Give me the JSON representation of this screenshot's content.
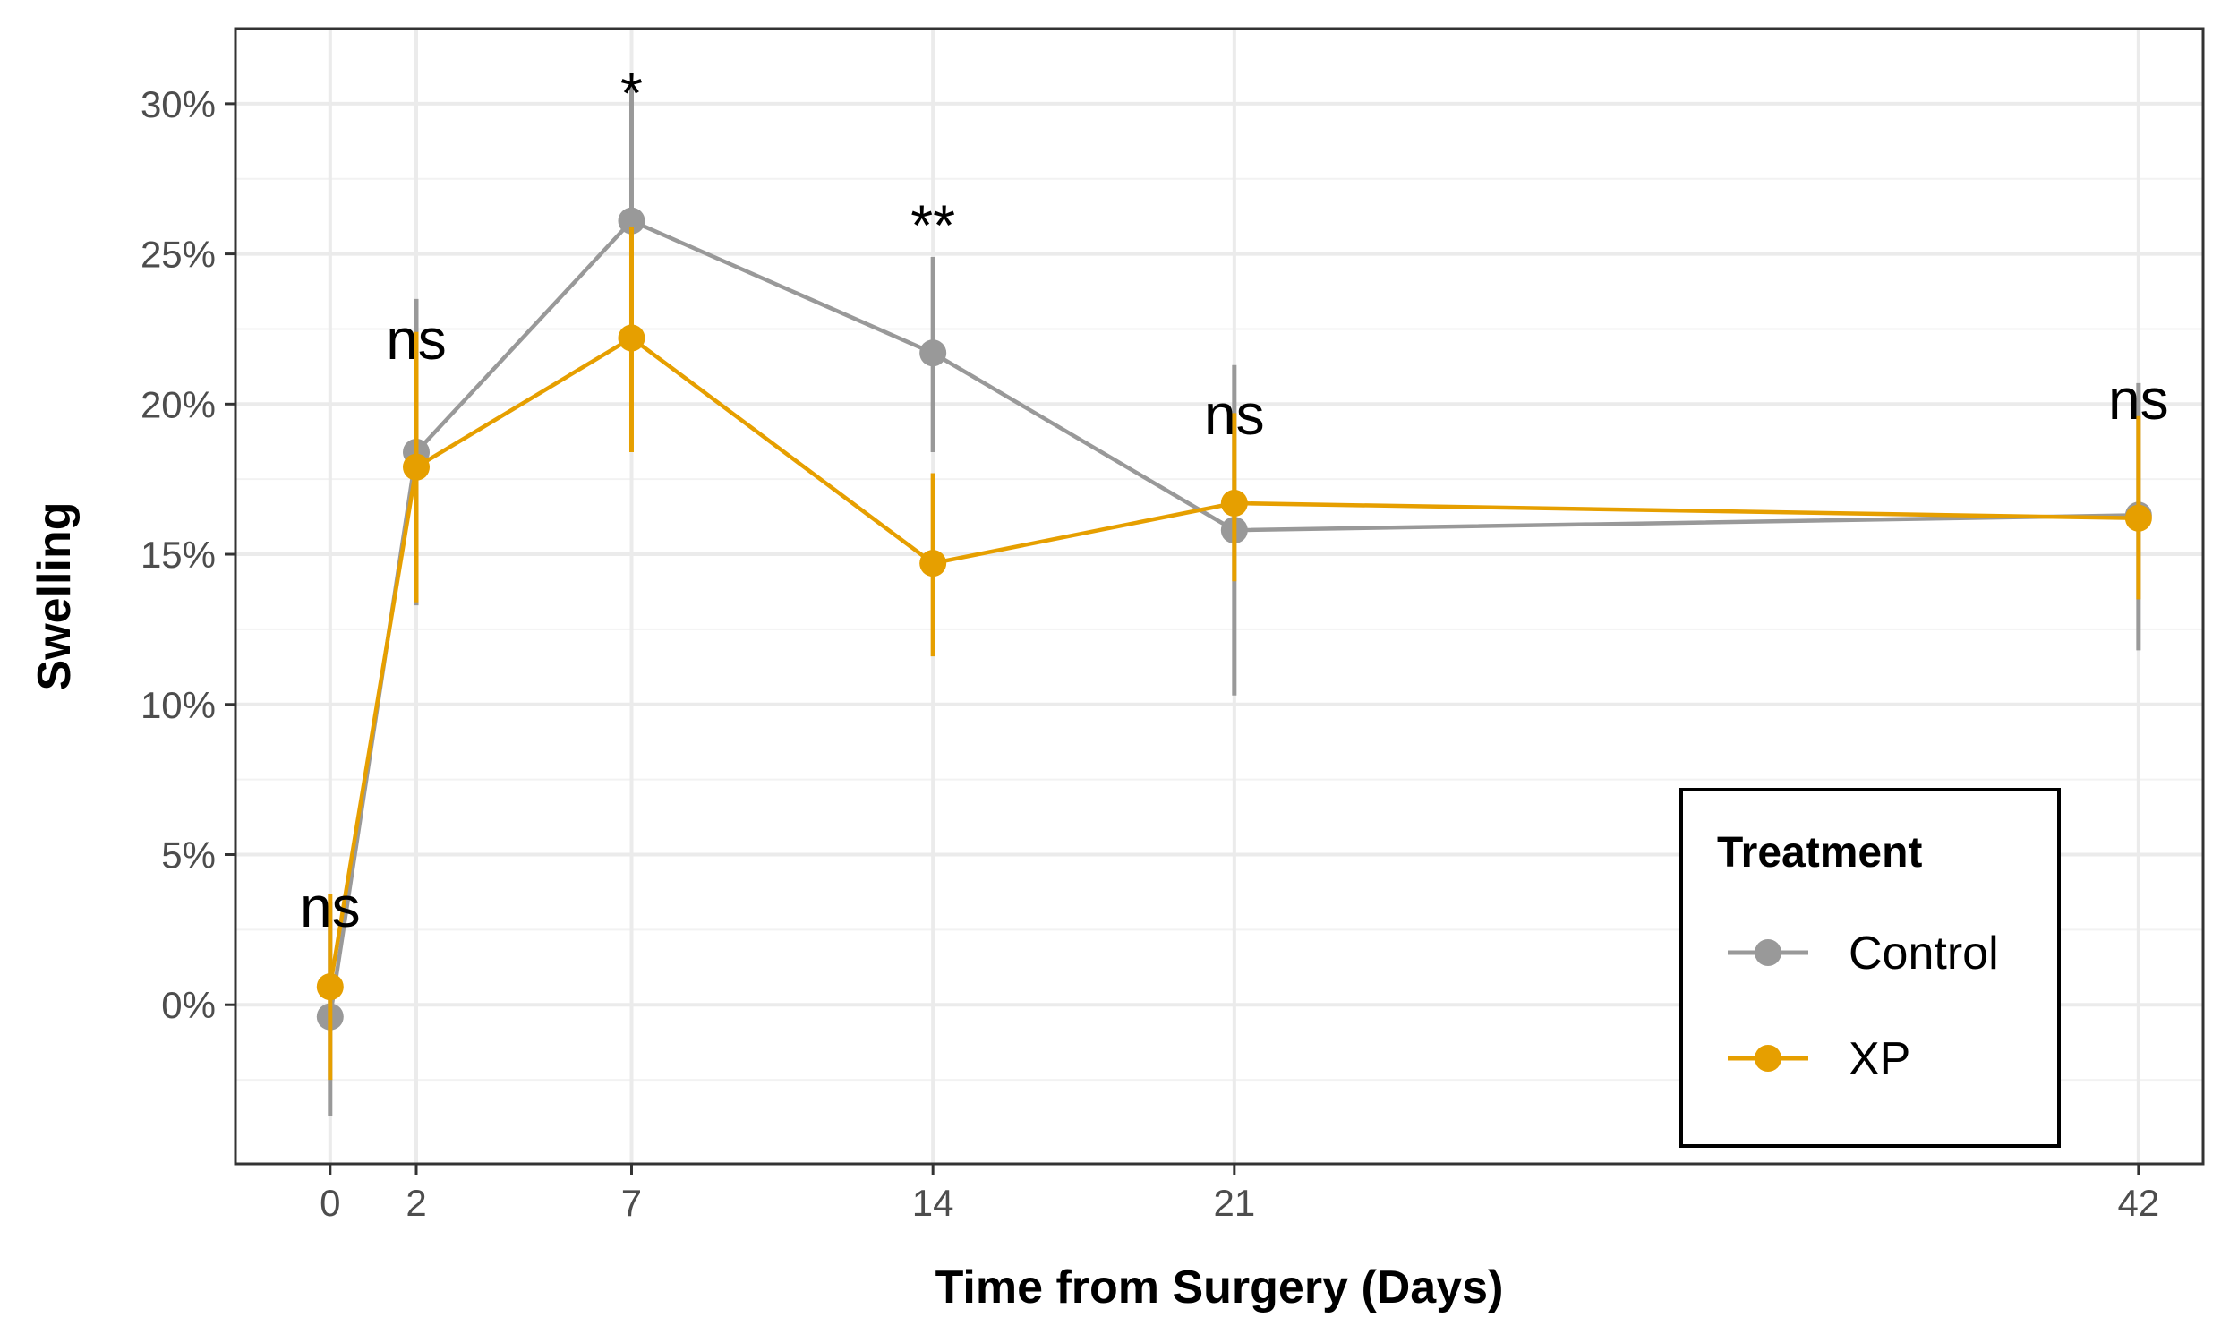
{
  "chart_data": {
    "type": "line",
    "title": "",
    "xlabel": "Time from Surgery (Days)",
    "ylabel": "Swelling",
    "x": [
      0,
      2,
      7,
      14,
      21,
      42
    ],
    "x_tick_labels": [
      "0",
      "2",
      "7",
      "14",
      "21",
      "42"
    ],
    "xlim": [
      -2.2,
      43.5
    ],
    "ylim": [
      -5.3,
      32.5
    ],
    "y_ticks": [
      0,
      5,
      10,
      15,
      20,
      25,
      30
    ],
    "y_tick_labels": [
      "0%",
      "5%",
      "10%",
      "15%",
      "20%",
      "25%",
      "30%"
    ],
    "grid": true,
    "series": [
      {
        "name": "Control",
        "color": "#999999",
        "values": [
          -0.4,
          18.4,
          26.1,
          21.7,
          15.8,
          16.3
        ],
        "error_low": [
          -3.7,
          13.3,
          21.8,
          18.4,
          10.3,
          11.8
        ],
        "error_high": [
          3.4,
          23.5,
          30.6,
          24.9,
          21.3,
          20.7
        ]
      },
      {
        "name": "XP",
        "color": "#E69F00",
        "values": [
          0.6,
          17.9,
          22.2,
          14.7,
          16.7,
          16.2
        ],
        "error_low": [
          -2.5,
          13.4,
          18.4,
          11.6,
          14.1,
          13.5
        ],
        "error_high": [
          3.7,
          22.4,
          25.9,
          17.7,
          19.7,
          19.6
        ]
      }
    ],
    "annotations": [
      {
        "x": 0,
        "y": 2.6,
        "text": "ns"
      },
      {
        "x": 2,
        "y": 21.5,
        "text": "ns"
      },
      {
        "x": 7,
        "y": 29.7,
        "text": "*"
      },
      {
        "x": 14,
        "y": 25.3,
        "text": "**"
      },
      {
        "x": 21,
        "y": 19.0,
        "text": "ns"
      },
      {
        "x": 42,
        "y": 19.5,
        "text": "ns"
      }
    ],
    "legend": {
      "title": "Treatment",
      "position": "bottom-right",
      "entries": [
        "Control",
        "XP"
      ]
    }
  }
}
